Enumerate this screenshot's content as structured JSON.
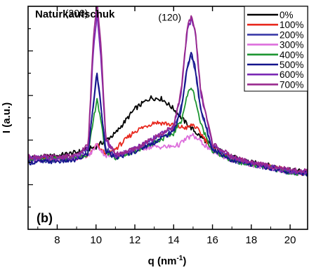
{
  "chart_data": {
    "type": "line",
    "title": "Naturkautschuk",
    "panel_label": "(b)",
    "xlabel": {
      "main": "q (nm",
      "sup": "-1",
      "close": ")"
    },
    "ylabel": "I (a.u.)",
    "xlim": [
      6.5,
      20.9
    ],
    "ylim": [
      0,
      10
    ],
    "x_ticks": [
      8,
      10,
      12,
      14,
      16,
      18,
      20
    ],
    "show_y_tick_labels": false,
    "grid": false,
    "legend_position": "top-right",
    "peak_labels": [
      {
        "text": "(200)",
        "x": 9.0,
        "y": 9.55
      },
      {
        "text": "(120)",
        "x": 13.8,
        "y": 9.35
      }
    ],
    "series": [
      {
        "name": "0%",
        "color": "#000000",
        "x": [
          6.5,
          8,
          9,
          10,
          11,
          12,
          12.8,
          13.4,
          14,
          14.6,
          15.2,
          16,
          17,
          18,
          19,
          20,
          20.9
        ],
        "y": [
          3.2,
          3.3,
          3.45,
          3.7,
          4.3,
          5.4,
          5.9,
          5.85,
          5.4,
          4.8,
          4.3,
          3.7,
          3.25,
          3.0,
          2.85,
          2.65,
          2.6
        ]
      },
      {
        "name": "100%",
        "color": "#e8281e",
        "x": [
          6.5,
          8,
          9,
          9.6,
          9.9,
          10.05,
          10.3,
          10.7,
          11,
          12,
          13,
          13.6,
          14.2,
          14.7,
          15,
          15.4,
          16,
          17,
          18,
          19,
          20,
          20.9
        ],
        "y": [
          3.1,
          3.15,
          3.2,
          3.3,
          3.6,
          3.8,
          3.5,
          3.4,
          3.6,
          4.4,
          4.8,
          4.75,
          4.6,
          4.55,
          4.7,
          4.3,
          3.6,
          3.2,
          2.95,
          2.8,
          2.6,
          2.5
        ]
      },
      {
        "name": "200%",
        "color": "#3c3ca8",
        "x": [
          6.5,
          8,
          9,
          9.6,
          9.85,
          10.05,
          10.25,
          10.5,
          11,
          12,
          13,
          14,
          14.4,
          14.7,
          14.9,
          15.1,
          15.4,
          16,
          17,
          18,
          19,
          20,
          20.9
        ],
        "y": [
          3.1,
          3.1,
          3.15,
          3.5,
          5.5,
          6.9,
          5.5,
          3.6,
          3.3,
          3.6,
          4.0,
          4.5,
          5.5,
          7.2,
          7.8,
          7.2,
          5.3,
          3.6,
          3.1,
          2.9,
          2.75,
          2.55,
          2.5
        ]
      },
      {
        "name": "300%",
        "color": "#dd6edc",
        "x": [
          6.5,
          8,
          9,
          9.7,
          9.95,
          10.05,
          10.2,
          10.5,
          11,
          12,
          13,
          13.8,
          14.3,
          14.7,
          15,
          15.3,
          16,
          17,
          18,
          19,
          20,
          20.9
        ],
        "y": [
          3.1,
          3.15,
          3.2,
          3.35,
          3.7,
          3.8,
          3.6,
          3.3,
          3.3,
          3.6,
          3.7,
          3.7,
          3.8,
          4.1,
          4.2,
          4.0,
          3.5,
          3.1,
          2.9,
          2.75,
          2.55,
          2.5
        ]
      },
      {
        "name": "400%",
        "color": "#1e9632",
        "x": [
          6.5,
          8,
          9,
          9.6,
          9.85,
          10.05,
          10.25,
          10.5,
          11,
          12,
          13,
          14,
          14.4,
          14.7,
          14.9,
          15.1,
          15.4,
          16,
          17,
          18,
          19,
          20,
          20.9
        ],
        "y": [
          3.15,
          3.15,
          3.2,
          3.4,
          4.8,
          5.9,
          4.8,
          3.5,
          3.2,
          3.5,
          3.9,
          4.3,
          4.9,
          6.0,
          6.4,
          5.9,
          4.7,
          3.5,
          3.1,
          2.9,
          2.75,
          2.55,
          2.5
        ]
      },
      {
        "name": "500%",
        "color": "#14148c",
        "x": [
          6.5,
          8,
          9,
          9.6,
          9.85,
          10.05,
          10.25,
          10.5,
          11,
          12,
          13,
          14,
          14.4,
          14.7,
          14.9,
          15.1,
          15.4,
          16,
          17,
          18,
          19,
          20,
          20.9
        ],
        "y": [
          3.0,
          3.05,
          3.1,
          3.4,
          5.6,
          7.05,
          5.6,
          3.5,
          3.2,
          3.5,
          3.9,
          4.4,
          5.4,
          7.3,
          7.9,
          7.3,
          5.4,
          3.6,
          3.1,
          2.9,
          2.75,
          2.55,
          2.5
        ]
      },
      {
        "name": "600%",
        "color": "#7a28b4",
        "x": [
          6.5,
          8,
          9,
          9.6,
          9.85,
          10.05,
          10.25,
          10.5,
          11,
          12,
          13,
          14,
          14.4,
          14.7,
          14.9,
          15.1,
          15.4,
          16,
          17,
          18,
          19,
          20,
          20.9
        ],
        "y": [
          3.2,
          3.2,
          3.25,
          3.7,
          7.8,
          9.7,
          7.8,
          4.0,
          3.3,
          3.6,
          4.1,
          4.6,
          6.2,
          8.9,
          9.4,
          8.9,
          6.1,
          3.8,
          3.2,
          3.0,
          2.8,
          2.6,
          2.55
        ]
      },
      {
        "name": "700%",
        "color": "#9a2a8e",
        "x": [
          6.5,
          8,
          9,
          9.6,
          9.85,
          10.05,
          10.25,
          10.5,
          11,
          12,
          13,
          14,
          14.4,
          14.7,
          14.9,
          15.1,
          15.4,
          16,
          17,
          18,
          19,
          20,
          20.9
        ],
        "y": [
          3.25,
          3.25,
          3.3,
          3.8,
          8.4,
          10.3,
          8.4,
          4.1,
          3.35,
          3.6,
          4.1,
          4.6,
          6.3,
          9.0,
          9.6,
          9.0,
          6.2,
          3.85,
          3.25,
          3.0,
          2.85,
          2.65,
          2.6
        ]
      }
    ]
  }
}
